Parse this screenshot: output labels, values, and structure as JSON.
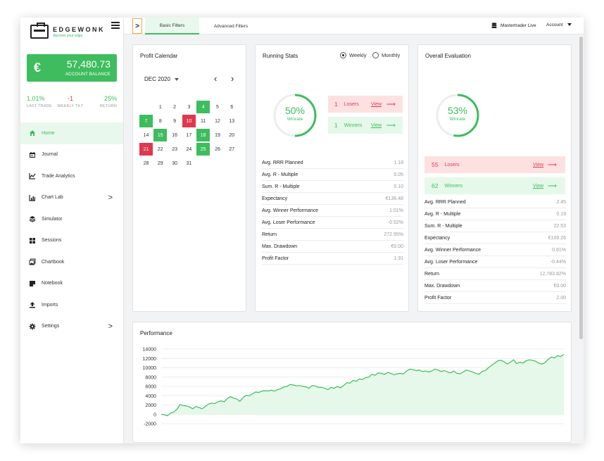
{
  "brand": {
    "name": "EDGEWONK",
    "tagline": "discover your edge"
  },
  "balance": {
    "currency_symbol": "€",
    "value": "57,480.73",
    "label": "ACCOUNT BALANCE"
  },
  "quick_stats": [
    {
      "value": "1.01%",
      "label": "LAST TRADE",
      "color": "#3dbd5d"
    },
    {
      "value": "-1",
      "label": "WEEKLY TILT",
      "color": "#e0384e"
    },
    {
      "value": "25%",
      "label": "RETURN",
      "color": "#3dbd5d"
    }
  ],
  "nav": [
    {
      "label": "Home",
      "icon": "home-icon",
      "active": true
    },
    {
      "label": "Journal",
      "icon": "calendar-icon"
    },
    {
      "label": "Trade Analytics",
      "icon": "line-chart-icon"
    },
    {
      "label": "Chart Lab",
      "icon": "bar-chart-icon",
      "chevron": ">"
    },
    {
      "label": "Simulator",
      "icon": "layers-icon"
    },
    {
      "label": "Sessions",
      "icon": "grid-icon"
    },
    {
      "label": "Chartbook",
      "icon": "images-icon"
    },
    {
      "label": "Notebook",
      "icon": "note-icon"
    },
    {
      "label": "Imports",
      "icon": "upload-icon"
    },
    {
      "label": "Settings",
      "icon": "gear-icon",
      "chevron": ">"
    }
  ],
  "topbar": {
    "toggle": ">",
    "tabs": [
      "Basic Filters",
      "Advanced Filters"
    ],
    "broker": "Mastertrader Live",
    "account": "Account"
  },
  "calendar": {
    "title": "Profit Calendar",
    "month": "DEC 2020",
    "rows": [
      [
        "",
        "",
        "1",
        "2",
        "3",
        "4",
        "5",
        "6"
      ],
      [
        "7",
        "8",
        "9",
        "10",
        "11",
        "12",
        "13"
      ],
      [
        "14",
        "15",
        "16",
        "17",
        "18",
        "19",
        "20"
      ],
      [
        "21",
        "22",
        "23",
        "24",
        "25",
        "26",
        "27"
      ],
      [
        "28",
        "29",
        "30",
        "31"
      ]
    ],
    "win_days": [
      "4",
      "7",
      "15",
      "18",
      "25"
    ],
    "loss_days": [
      "10",
      "21"
    ]
  },
  "running": {
    "title": "Running Stats",
    "options": [
      "Weekly",
      "Monthly"
    ],
    "selected": "Weekly",
    "winrate_pct": "50%",
    "winrate_label": "Winrate",
    "winrate_value": 0.5,
    "losers_count": "1",
    "losers_label": "Losers",
    "winners_count": "1",
    "winners_label": "Winners",
    "view_label": "View",
    "rows": [
      [
        "Avg. RRR Planned",
        "1.18"
      ],
      [
        "Avg. R - Multiple",
        "0.05"
      ],
      [
        "Sum. R - Multiple",
        "0.10"
      ],
      [
        "Expectancy",
        "€136.48"
      ],
      [
        "Avg. Winner Performance",
        "1.01%"
      ],
      [
        "Avg. Loser Performance",
        "-0.52%"
      ],
      [
        "Return",
        "272.95%"
      ],
      [
        "Max. Drawdown",
        "€0.00"
      ],
      [
        "Profit Factor",
        "1.91"
      ]
    ]
  },
  "overall": {
    "title": "Overall Evaluation",
    "winrate_pct": "53%",
    "winrate_label": "Winrate",
    "winrate_value": 0.53,
    "losers_count": "55",
    "losers_label": "Losers",
    "winners_count": "62",
    "winners_label": "Winners",
    "view_label": "View",
    "rows": [
      [
        "Avg. RRR Planned",
        "2.45"
      ],
      [
        "Avg. R - Multiple",
        "0.19"
      ],
      [
        "Sum. R - Multiple",
        "22.53"
      ],
      [
        "Expectancy",
        "€109.26"
      ],
      [
        "Avg. Winner Performance",
        "0.81%"
      ],
      [
        "Avg. Loser Performance",
        "-0.44%"
      ],
      [
        "Return",
        "12,783.82%"
      ],
      [
        "Max. Drawdown",
        "€0.00"
      ],
      [
        "Profit Factor",
        "2.00"
      ]
    ]
  },
  "performance": {
    "title": "Performance"
  },
  "chart_data": {
    "type": "area",
    "title": "Performance",
    "ylim": [
      -2000,
      14000
    ],
    "yticks": [
      "14000",
      "12000",
      "10000",
      "8000",
      "6000",
      "4000",
      "2000",
      "0",
      "-2000"
    ],
    "grid": true,
    "color": "#3dbd5d",
    "values": [
      0,
      -100,
      -300,
      300,
      500,
      1100,
      2100,
      1900,
      1800,
      1600,
      1200,
      1700,
      1500,
      1200,
      1700,
      2200,
      2400,
      2300,
      2700,
      2900,
      2700,
      3400,
      3800,
      3500,
      3300,
      2800,
      3600,
      4100,
      4000,
      4400,
      4800,
      4700,
      5000,
      5100,
      5000,
      5200,
      5000,
      5300,
      5500,
      5900,
      6000,
      6400,
      6300,
      6100,
      6200,
      6000,
      5900,
      5600,
      6200,
      6100,
      5800,
      5800,
      5600,
      5300,
      5800,
      5600,
      6000,
      5700,
      6200,
      6800,
      6700,
      7300,
      7100,
      7600,
      7500,
      7900,
      8000,
      8600,
      8400,
      8900,
      8800,
      8600,
      9000,
      8800,
      8500,
      8700,
      8800,
      8700,
      9300,
      9700,
      9600,
      9400,
      9500,
      9200,
      9300,
      9100,
      9300,
      9700,
      9500,
      9200,
      9400,
      9100,
      8900,
      9300,
      8800,
      8700,
      9100,
      9500,
      9300,
      9100,
      8800,
      8600,
      9200,
      9400,
      10000,
      10500,
      11000,
      11500,
      11600,
      11300,
      10800,
      11200,
      11700,
      10900,
      11200,
      11000,
      11500,
      11700,
      11600,
      11400,
      11000,
      10800,
      11100,
      11800,
      12300,
      12100,
      12600,
      12400,
      12900
    ]
  }
}
